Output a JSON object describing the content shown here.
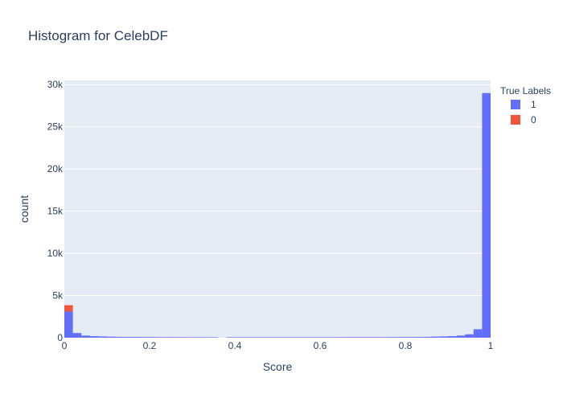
{
  "chart_data": {
    "type": "bar",
    "title": "Histogram for CelebDF",
    "xlabel": "Score",
    "ylabel": "count",
    "xlim": [
      0,
      1
    ],
    "ylim": [
      0,
      30500
    ],
    "bin_width": 0.02,
    "x_ticks": [
      0,
      0.2,
      0.4,
      0.6,
      0.8,
      1
    ],
    "x_tick_labels": [
      "0",
      "0.2",
      "0.4",
      "0.6",
      "0.8",
      "1"
    ],
    "y_ticks": [
      0,
      5000,
      10000,
      15000,
      20000,
      25000,
      30000
    ],
    "y_tick_labels": [
      "0",
      "5k",
      "10k",
      "15k",
      "20k",
      "25k",
      "30k"
    ],
    "barmode": "stack",
    "grid": true,
    "legend": {
      "title": "True Labels",
      "position": "top-right"
    },
    "bin_starts": [
      0,
      0.02,
      0.04,
      0.06,
      0.08,
      0.1,
      0.12,
      0.14,
      0.16,
      0.18,
      0.2,
      0.22,
      0.24,
      0.26,
      0.28,
      0.3,
      0.32,
      0.34,
      0.36,
      0.38,
      0.4,
      0.42,
      0.44,
      0.46,
      0.48,
      0.5,
      0.52,
      0.54,
      0.56,
      0.58,
      0.6,
      0.62,
      0.64,
      0.66,
      0.68,
      0.7,
      0.72,
      0.74,
      0.76,
      0.78,
      0.8,
      0.82,
      0.84,
      0.86,
      0.88,
      0.9,
      0.92,
      0.94,
      0.96,
      0.98
    ],
    "series": [
      {
        "name": "1",
        "color": "#636efa",
        "values": [
          3100,
          550,
          250,
          180,
          150,
          120,
          100,
          90,
          90,
          80,
          80,
          70,
          70,
          70,
          60,
          60,
          60,
          60,
          0,
          60,
          60,
          60,
          60,
          60,
          60,
          60,
          60,
          60,
          60,
          60,
          60,
          60,
          70,
          70,
          70,
          70,
          70,
          70,
          80,
          80,
          80,
          90,
          100,
          130,
          150,
          180,
          250,
          400,
          1000,
          29000
        ]
      },
      {
        "name": "0",
        "color": "#ef553b",
        "values": [
          750,
          0,
          0,
          0,
          0,
          0,
          0,
          0,
          0,
          0,
          0,
          0,
          0,
          0,
          0,
          0,
          0,
          0,
          0,
          0,
          0,
          0,
          0,
          0,
          0,
          0,
          0,
          0,
          0,
          0,
          0,
          0,
          0,
          0,
          0,
          0,
          0,
          0,
          0,
          0,
          0,
          0,
          0,
          0,
          0,
          0,
          0,
          0,
          0,
          0
        ]
      }
    ]
  }
}
